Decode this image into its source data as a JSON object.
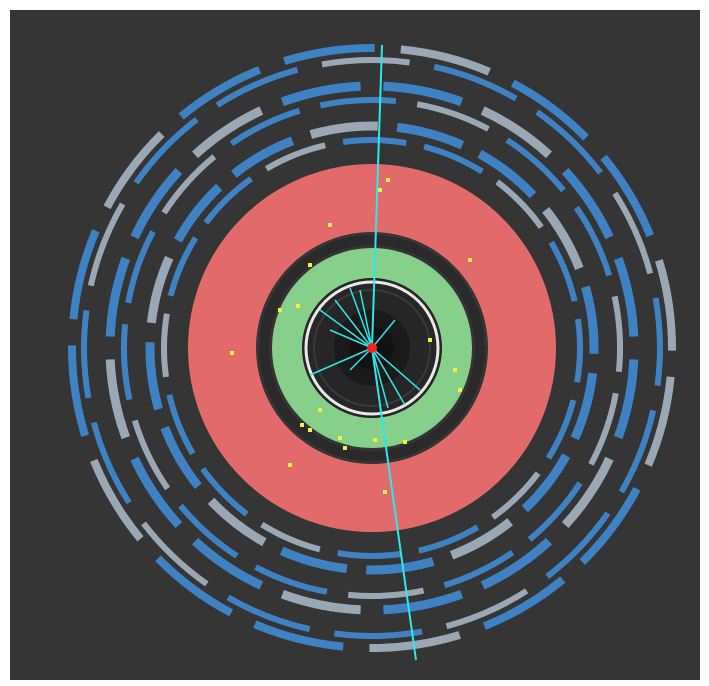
{
  "event_display": {
    "background": "#353535",
    "colors": {
      "muon_blue": "#3f82c4",
      "muon_grey": "#9aa8b5",
      "calorimeter_red": "#e26a6a",
      "tracker_green": "#86d08c",
      "solenoid_white": "#e8e8e8",
      "beam_pipe": "#1f1f1f",
      "track_cyan": "#2ee8e8",
      "hit_yellow": "#f0f040",
      "vertex_red": "#ff2020"
    }
  }
}
